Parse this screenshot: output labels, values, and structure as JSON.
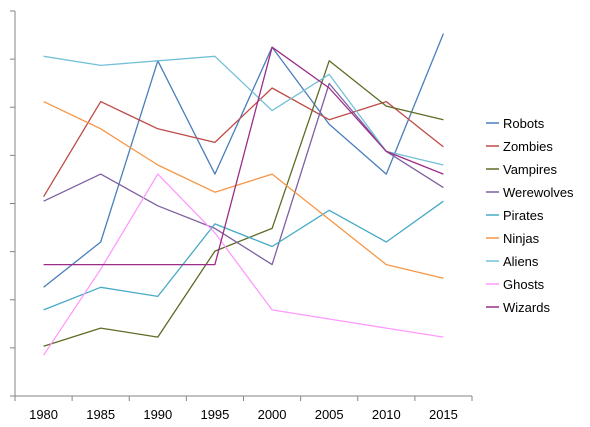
{
  "chart_data": {
    "type": "line",
    "title": "",
    "xlabel": "",
    "ylabel": "",
    "x": [
      "1980",
      "1985",
      "1990",
      "1995",
      "2000",
      "2005",
      "2010",
      "2015"
    ],
    "ylim": [
      0,
      8.5
    ],
    "ytick_count": 9,
    "grid": false,
    "legend_position": "right",
    "series": [
      {
        "name": "Robots",
        "color": "#4a7ebb",
        "values": [
          2.4,
          3.4,
          7.4,
          4.9,
          7.7,
          6.0,
          4.9,
          8.0
        ]
      },
      {
        "name": "Zombies",
        "color": "#be4b48",
        "values": [
          4.4,
          6.5,
          5.9,
          5.6,
          6.8,
          6.1,
          6.5,
          5.5
        ]
      },
      {
        "name": "Vampires",
        "color": "#5e6b25",
        "values": [
          1.1,
          1.5,
          1.3,
          3.2,
          3.7,
          7.4,
          6.4,
          6.1
        ]
      },
      {
        "name": "Werewolves",
        "color": "#7d60a0",
        "values": [
          4.3,
          4.9,
          4.2,
          3.7,
          2.9,
          6.9,
          5.4,
          4.6
        ]
      },
      {
        "name": "Pirates",
        "color": "#46aac5",
        "values": [
          1.9,
          2.4,
          2.2,
          3.8,
          3.3,
          4.1,
          3.4,
          4.3
        ]
      },
      {
        "name": "Ninjas",
        "color": "#f79646",
        "values": [
          6.5,
          5.9,
          5.1,
          4.5,
          4.9,
          3.9,
          2.9,
          2.6
        ]
      },
      {
        "name": "Aliens",
        "color": "#73c0d8",
        "values": [
          7.5,
          7.3,
          7.4,
          7.5,
          6.3,
          7.1,
          5.4,
          5.1
        ]
      },
      {
        "name": "Ghosts",
        "color": "#ff99ff",
        "values": [
          0.9,
          2.8,
          4.9,
          3.6,
          1.9,
          1.7,
          1.5,
          1.3
        ]
      },
      {
        "name": "Wizards",
        "color": "#9b2d89",
        "values": [
          2.9,
          2.9,
          2.9,
          2.9,
          7.7,
          6.8,
          5.4,
          4.9
        ]
      }
    ]
  }
}
